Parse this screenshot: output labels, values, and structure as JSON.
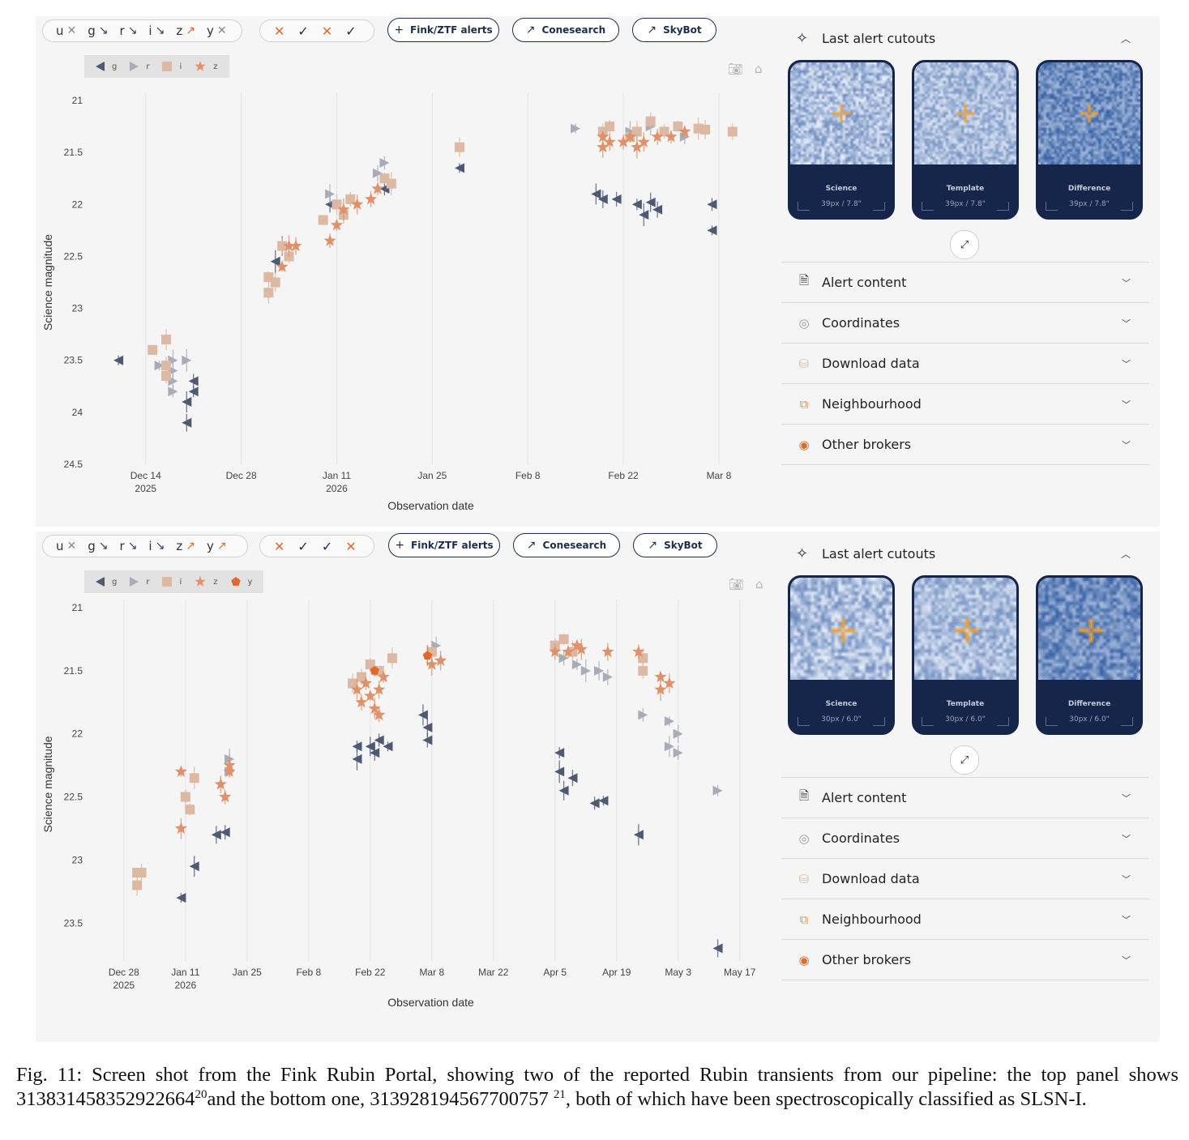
{
  "panels": [
    {
      "id": "top",
      "band_filters": [
        {
          "band": "u",
          "state": "x"
        },
        {
          "band": "g",
          "state": "down"
        },
        {
          "band": "r",
          "state": "down"
        },
        {
          "band": "i",
          "state": "down"
        },
        {
          "band": "z",
          "state": "up"
        },
        {
          "band": "y",
          "state": "x"
        }
      ],
      "status_marks": [
        "✕",
        "✓",
        "✕",
        "✓"
      ],
      "buttons": {
        "fink": "Fink/ZTF alerts",
        "conesearch": "Conesearch",
        "skybot": "SkyBot"
      },
      "legend": [
        "g",
        "r",
        "i",
        "z"
      ],
      "cutouts": {
        "header": "Last alert cutouts",
        "cards": [
          {
            "title": "Science",
            "size": "39px / 7.8\""
          },
          {
            "title": "Template",
            "size": "39px / 7.8\""
          },
          {
            "title": "Difference",
            "size": "39px / 7.8\""
          }
        ]
      },
      "accordion": [
        "Alert content",
        "Coordinates",
        "Download data",
        "Neighbourhood",
        "Other brokers"
      ]
    },
    {
      "id": "bottom",
      "band_filters": [
        {
          "band": "u",
          "state": "x"
        },
        {
          "band": "g",
          "state": "down"
        },
        {
          "band": "r",
          "state": "down"
        },
        {
          "band": "i",
          "state": "down"
        },
        {
          "band": "z",
          "state": "up"
        },
        {
          "band": "y",
          "state": "up"
        }
      ],
      "status_marks": [
        "✕",
        "✓",
        "✓",
        "✕"
      ],
      "buttons": {
        "fink": "Fink/ZTF alerts",
        "conesearch": "Conesearch",
        "skybot": "SkyBot"
      },
      "legend": [
        "g",
        "r",
        "i",
        "z",
        "y"
      ],
      "cutouts": {
        "header": "Last alert cutouts",
        "cards": [
          {
            "title": "Science",
            "size": "30px / 6.0\""
          },
          {
            "title": "Template",
            "size": "30px / 6.0\""
          },
          {
            "title": "Difference",
            "size": "30px / 6.0\""
          }
        ]
      },
      "accordion": [
        "Alert content",
        "Coordinates",
        "Download data",
        "Neighbourhood",
        "Other brokers"
      ]
    }
  ],
  "colors": {
    "g": "#4e5a73",
    "r": "#a7acb8",
    "i": "#ddb8a2",
    "z": "#e0916a",
    "y": "#e06a2c",
    "navy": "#1e2d4a",
    "orange": "#e06a2c",
    "panel_bg": "#f5f5f5"
  },
  "icons": {
    "star": "sparkle-icon",
    "doc": "document-icon",
    "target": "target-icon",
    "db": "database-icon",
    "link": "external-link-icon",
    "brokers": "broker-icon",
    "expand": "expand-icon",
    "camera": "camera-icon",
    "home": "home-icon"
  },
  "chart_data": [
    {
      "type": "scatter",
      "title": "",
      "xlabel": "Observation date",
      "ylabel": "Science magnitude",
      "y_inverted": true,
      "ylim": [
        21,
        24.5
      ],
      "xlim": [
        "2025-12-05",
        "2026-03-13"
      ],
      "x_ticks": [
        {
          "date": "2025-12-14",
          "line1": "Dec 14",
          "line2": "2025"
        },
        {
          "date": "2025-12-28",
          "line1": "Dec 28",
          "line2": ""
        },
        {
          "date": "2026-01-11",
          "line1": "Jan 11",
          "line2": "2026"
        },
        {
          "date": "2026-01-25",
          "line1": "Jan 25",
          "line2": ""
        },
        {
          "date": "2026-02-08",
          "line1": "Feb 8",
          "line2": ""
        },
        {
          "date": "2026-02-22",
          "line1": "Feb 22",
          "line2": ""
        },
        {
          "date": "2026-03-08",
          "line1": "Mar 8",
          "line2": ""
        }
      ],
      "y_ticks": [
        21,
        21.5,
        22,
        22.5,
        23,
        23.5,
        24,
        24.5
      ],
      "grid": true,
      "legend_position": "top-left",
      "series": [
        {
          "name": "g",
          "marker": "triangle-left",
          "points": [
            [
              "2025-12-10",
              23.5
            ],
            [
              "2025-12-20",
              23.9
            ],
            [
              "2025-12-20",
              24.1
            ],
            [
              "2025-12-21",
              23.7
            ],
            [
              "2025-12-21",
              23.8
            ],
            [
              "2026-01-02",
              22.55
            ],
            [
              "2026-01-03",
              22.4
            ],
            [
              "2026-01-10",
              22.0
            ],
            [
              "2026-01-18",
              21.85
            ],
            [
              "2026-01-29",
              21.65
            ],
            [
              "2026-02-18",
              21.9
            ],
            [
              "2026-02-19",
              21.95
            ],
            [
              "2026-02-21",
              21.95
            ],
            [
              "2026-02-24",
              22.0
            ],
            [
              "2026-02-25",
              22.1
            ],
            [
              "2026-02-26",
              21.98
            ],
            [
              "2026-02-27",
              22.05
            ],
            [
              "2026-03-07",
              22.0
            ],
            [
              "2026-03-07",
              22.25
            ]
          ]
        },
        {
          "name": "r",
          "marker": "triangle-right",
          "points": [
            [
              "2025-12-16",
              23.55
            ],
            [
              "2025-12-18",
              23.5
            ],
            [
              "2025-12-18",
              23.6
            ],
            [
              "2025-12-18",
              23.7
            ],
            [
              "2025-12-18",
              23.8
            ],
            [
              "2025-12-20",
              23.5
            ],
            [
              "2026-01-10",
              21.9
            ],
            [
              "2026-01-17",
              21.7
            ],
            [
              "2026-01-18",
              21.6
            ],
            [
              "2026-02-15",
              21.27
            ],
            [
              "2026-02-23",
              21.3
            ],
            [
              "2026-02-26",
              21.25
            ],
            [
              "2026-03-03",
              21.35
            ]
          ]
        },
        {
          "name": "i",
          "marker": "square",
          "points": [
            [
              "2025-12-15",
              23.4
            ],
            [
              "2025-12-17",
              23.3
            ],
            [
              "2025-12-17",
              23.55
            ],
            [
              "2025-12-17",
              23.65
            ],
            [
              "2026-01-01",
              22.7
            ],
            [
              "2026-01-01",
              22.85
            ],
            [
              "2026-01-02",
              22.75
            ],
            [
              "2026-01-03",
              22.4
            ],
            [
              "2026-01-04",
              22.5
            ],
            [
              "2026-01-09",
              22.15
            ],
            [
              "2026-01-11",
              22.0
            ],
            [
              "2026-01-12",
              22.1
            ],
            [
              "2026-01-13",
              21.95
            ],
            [
              "2026-01-18",
              21.75
            ],
            [
              "2026-01-19",
              21.8
            ],
            [
              "2026-01-29",
              21.45
            ],
            [
              "2026-02-19",
              21.3
            ],
            [
              "2026-02-20",
              21.25
            ],
            [
              "2026-02-23",
              21.35
            ],
            [
              "2026-02-24",
              21.3
            ],
            [
              "2026-02-26",
              21.2
            ],
            [
              "2026-02-28",
              21.3
            ],
            [
              "2026-03-02",
              21.25
            ],
            [
              "2026-03-05",
              21.27
            ],
            [
              "2026-03-06",
              21.28
            ],
            [
              "2026-03-10",
              21.3
            ]
          ]
        },
        {
          "name": "z",
          "marker": "star",
          "points": [
            [
              "2026-01-03",
              22.6
            ],
            [
              "2026-01-04",
              22.4
            ],
            [
              "2026-01-05",
              22.4
            ],
            [
              "2026-01-10",
              22.35
            ],
            [
              "2026-01-11",
              22.2
            ],
            [
              "2026-01-12",
              22.05
            ],
            [
              "2026-01-14",
              22.0
            ],
            [
              "2026-01-16",
              21.95
            ],
            [
              "2026-01-17",
              21.85
            ],
            [
              "2026-02-19",
              21.35
            ],
            [
              "2026-02-19",
              21.45
            ],
            [
              "2026-02-20",
              21.4
            ],
            [
              "2026-02-22",
              21.4
            ],
            [
              "2026-02-23",
              21.35
            ],
            [
              "2026-02-24",
              21.45
            ],
            [
              "2026-02-25",
              21.4
            ],
            [
              "2026-02-27",
              21.35
            ],
            [
              "2026-03-01",
              21.35
            ],
            [
              "2026-03-03",
              21.3
            ]
          ]
        }
      ]
    },
    {
      "type": "scatter",
      "title": "",
      "xlabel": "Observation date",
      "ylabel": "Science magnitude",
      "y_inverted": true,
      "ylim": [
        21,
        23.8
      ],
      "xlim": [
        "2025-12-19",
        "2026-05-20"
      ],
      "x_ticks": [
        {
          "date": "2025-12-28",
          "line1": "Dec 28",
          "line2": "2025"
        },
        {
          "date": "2026-01-11",
          "line1": "Jan 11",
          "line2": "2026"
        },
        {
          "date": "2026-01-25",
          "line1": "Jan 25",
          "line2": ""
        },
        {
          "date": "2026-02-08",
          "line1": "Feb 8",
          "line2": ""
        },
        {
          "date": "2026-02-22",
          "line1": "Feb 22",
          "line2": ""
        },
        {
          "date": "2026-03-08",
          "line1": "Mar 8",
          "line2": ""
        },
        {
          "date": "2026-03-22",
          "line1": "Mar 22",
          "line2": ""
        },
        {
          "date": "2026-04-05",
          "line1": "Apr 5",
          "line2": ""
        },
        {
          "date": "2026-04-19",
          "line1": "Apr 19",
          "line2": ""
        },
        {
          "date": "2026-05-03",
          "line1": "May 3",
          "line2": ""
        },
        {
          "date": "2026-05-17",
          "line1": "May 17",
          "line2": ""
        }
      ],
      "y_ticks": [
        21,
        21.5,
        22,
        22.5,
        23,
        23.5
      ],
      "grid": true,
      "legend_position": "top-left",
      "series": [
        {
          "name": "g",
          "marker": "triangle-left",
          "points": [
            [
              "2026-01-10",
              23.3
            ],
            [
              "2026-01-13",
              23.05
            ],
            [
              "2026-01-18",
              22.8
            ],
            [
              "2026-01-20",
              22.78
            ],
            [
              "2026-02-19",
              22.1
            ],
            [
              "2026-02-19",
              22.2
            ],
            [
              "2026-02-22",
              22.1
            ],
            [
              "2026-02-23",
              22.15
            ],
            [
              "2026-02-24",
              22.05
            ],
            [
              "2026-02-26",
              22.1
            ],
            [
              "2026-03-06",
              21.85
            ],
            [
              "2026-03-07",
              21.95
            ],
            [
              "2026-03-07",
              22.05
            ],
            [
              "2026-04-06",
              22.15
            ],
            [
              "2026-04-06",
              22.3
            ],
            [
              "2026-04-07",
              22.45
            ],
            [
              "2026-04-09",
              22.35
            ],
            [
              "2026-04-14",
              22.55
            ],
            [
              "2026-04-16",
              22.53
            ],
            [
              "2026-04-24",
              22.8
            ],
            [
              "2026-05-12",
              23.7
            ]
          ]
        },
        {
          "name": "r",
          "marker": "triangle-right",
          "points": [
            [
              "2026-01-21",
              22.3
            ],
            [
              "2026-01-21",
              22.2
            ],
            [
              "2026-03-09",
              21.3
            ],
            [
              "2026-04-07",
              21.4
            ],
            [
              "2026-04-10",
              21.45
            ],
            [
              "2026-04-12",
              21.5
            ],
            [
              "2026-04-15",
              21.5
            ],
            [
              "2026-04-17",
              21.55
            ],
            [
              "2026-04-25",
              21.85
            ],
            [
              "2026-05-01",
              21.9
            ],
            [
              "2026-05-01",
              22.1
            ],
            [
              "2026-05-03",
              22.0
            ],
            [
              "2026-05-03",
              22.15
            ],
            [
              "2026-05-12",
              22.45
            ]
          ]
        },
        {
          "name": "i",
          "marker": "square",
          "points": [
            [
              "2025-12-31",
              23.1
            ],
            [
              "2025-12-31",
              23.2
            ],
            [
              "2026-01-01",
              23.1
            ],
            [
              "2026-01-11",
              22.5
            ],
            [
              "2026-01-12",
              22.6
            ],
            [
              "2026-01-13",
              22.35
            ],
            [
              "2026-02-18",
              21.6
            ],
            [
              "2026-02-20",
              21.55
            ],
            [
              "2026-02-22",
              21.45
            ],
            [
              "2026-02-24",
              21.5
            ],
            [
              "2026-02-27",
              21.4
            ],
            [
              "2026-03-08",
              21.35
            ],
            [
              "2026-04-05",
              21.3
            ],
            [
              "2026-04-07",
              21.25
            ],
            [
              "2026-04-09",
              21.35
            ],
            [
              "2026-04-25",
              21.4
            ],
            [
              "2026-04-25",
              21.5
            ]
          ]
        },
        {
          "name": "z",
          "marker": "star",
          "points": [
            [
              "2026-01-10",
              22.3
            ],
            [
              "2026-01-10",
              22.75
            ],
            [
              "2026-01-19",
              22.4
            ],
            [
              "2026-01-20",
              22.5
            ],
            [
              "2026-01-21",
              22.3
            ],
            [
              "2026-01-21",
              22.25
            ],
            [
              "2026-02-19",
              21.65
            ],
            [
              "2026-02-20",
              21.75
            ],
            [
              "2026-02-21",
              21.6
            ],
            [
              "2026-02-22",
              21.7
            ],
            [
              "2026-02-23",
              21.8
            ],
            [
              "2026-02-24",
              21.65
            ],
            [
              "2026-02-24",
              21.85
            ],
            [
              "2026-02-25",
              21.55
            ],
            [
              "2026-03-08",
              21.45
            ],
            [
              "2026-03-10",
              21.42
            ],
            [
              "2026-04-05",
              21.35
            ],
            [
              "2026-04-08",
              21.35
            ],
            [
              "2026-04-10",
              21.3
            ],
            [
              "2026-04-11",
              21.33
            ],
            [
              "2026-04-17",
              21.35
            ],
            [
              "2026-04-24",
              21.35
            ],
            [
              "2026-04-29",
              21.55
            ],
            [
              "2026-04-29",
              21.65
            ],
            [
              "2026-05-01",
              21.6
            ]
          ]
        },
        {
          "name": "y",
          "marker": "pentagon",
          "points": [
            [
              "2026-02-23",
              21.5
            ],
            [
              "2026-03-07",
              21.38
            ]
          ]
        }
      ]
    }
  ],
  "caption": {
    "lead": "Fig. 11: Screen shot from the Fink Rubin Portal, showing two of the reported Rubin transients from our pipeline: the top panel shows 313831458352922664",
    "sup1": "20",
    "mid": "and the bottom one, 313928194567700757 ",
    "sup2": "21",
    "tail": ", both of which have been spectroscopically classified as SLSN-I."
  }
}
